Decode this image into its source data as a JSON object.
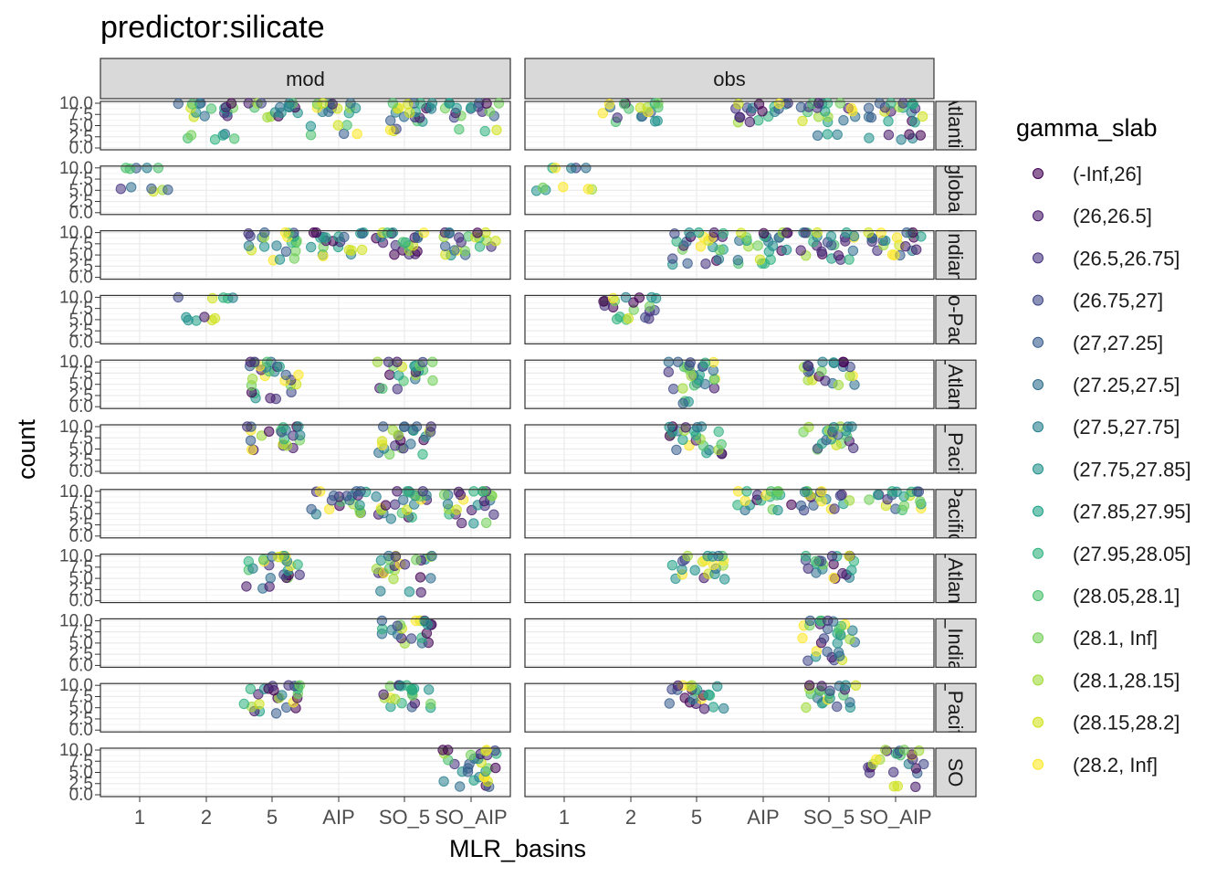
{
  "chart_data": {
    "type": "scatter",
    "title": "predictor:silicate",
    "xlabel": "MLR_basins",
    "ylabel": "count",
    "x_categories": [
      "1",
      "2",
      "5",
      "AIP",
      "SO_5",
      "SO_AIP"
    ],
    "y_ticks": [
      "0.0",
      "2.5",
      "5.0",
      "7.5",
      "10.0"
    ],
    "ylim": [
      0,
      10
    ],
    "grid": true,
    "facet_columns": [
      "mod",
      "obs"
    ],
    "facet_rows": [
      {
        "label": "Atlantic",
        "mod": {
          "5": [
            7,
            8,
            9,
            10
          ],
          "AIP": [
            3,
            5,
            8,
            9,
            10
          ],
          "SO_5": [
            4,
            6,
            7,
            8,
            9,
            10
          ],
          "SO_AIP": [
            4,
            7,
            8,
            9,
            10
          ],
          "2": [
            2,
            3,
            7,
            8,
            9,
            10
          ]
        },
        "obs": {
          "2": [
            6,
            7,
            8,
            9,
            10
          ],
          "AIP": [
            6,
            7,
            8,
            9,
            10
          ],
          "SO_5": [
            3,
            6,
            7,
            8,
            9,
            10
          ],
          "SO_AIP": [
            2,
            3,
            6,
            7,
            8,
            9,
            10
          ]
        }
      },
      {
        "label": "global",
        "mod": {
          "1": [
            5,
            5.5,
            10
          ]
        },
        "obs": {
          "1": [
            5,
            5.5,
            10
          ]
        }
      },
      {
        "label": "Indian",
        "mod": {
          "5": [
            4,
            6,
            7,
            8,
            9,
            10
          ],
          "AIP": [
            5,
            6,
            7,
            8,
            9,
            10
          ],
          "SO_5": [
            5,
            6,
            7,
            8,
            9,
            10
          ],
          "SO_AIP": [
            5,
            6,
            7,
            8,
            9,
            10
          ]
        },
        "obs": {
          "5": [
            3,
            4,
            6,
            7,
            8,
            9,
            10
          ],
          "AIP": [
            3,
            4,
            6,
            7,
            8,
            9,
            10
          ],
          "SO_5": [
            4,
            5,
            6,
            7,
            8,
            9,
            10
          ],
          "SO_AIP": [
            5,
            6,
            7,
            8,
            9,
            10
          ]
        }
      },
      {
        "label": "Indo-Pacific",
        "mod": {
          "2": [
            5,
            5.5,
            10
          ]
        },
        "obs": {
          "2": [
            5,
            5.5,
            7,
            8,
            9,
            10
          ]
        }
      },
      {
        "label": "N_Atlantic",
        "mod": {
          "5": [
            2,
            3,
            5,
            6,
            7,
            8,
            9,
            10
          ],
          "SO_5": [
            4,
            6,
            7,
            8,
            9,
            10
          ]
        },
        "obs": {
          "5": [
            1,
            4,
            5,
            6,
            7,
            8,
            9,
            10
          ],
          "SO_5": [
            5,
            6,
            7,
            8,
            9,
            10
          ]
        }
      },
      {
        "label": "N_Pacific",
        "mod": {
          "5": [
            5,
            6,
            7,
            8,
            9,
            10
          ],
          "SO_5": [
            4,
            5,
            6,
            7,
            8,
            9,
            10
          ]
        },
        "obs": {
          "5": [
            4,
            5,
            6,
            7,
            8,
            9,
            10
          ],
          "SO_5": [
            5,
            6,
            7,
            8,
            9,
            10
          ]
        }
      },
      {
        "label": "Pacific",
        "mod": {
          "AIP": [
            5,
            6,
            7,
            8,
            9,
            10
          ],
          "SO_5": [
            4,
            5,
            6,
            7,
            8,
            9,
            10
          ],
          "SO_AIP": [
            3,
            5,
            6,
            7,
            8,
            9,
            10
          ]
        },
        "obs": {
          "AIP": [
            6,
            7,
            8,
            9,
            10
          ],
          "SO_5": [
            6,
            7,
            8,
            9,
            10
          ],
          "SO_AIP": [
            6,
            7,
            8,
            9,
            10
          ]
        }
      },
      {
        "label": "S_Atlantic",
        "mod": {
          "5": [
            3,
            5,
            6,
            7,
            8,
            9,
            10
          ],
          "SO_5": [
            2,
            5,
            6,
            7,
            8,
            9,
            10
          ]
        },
        "obs": {
          "5": [
            5,
            6,
            7,
            8,
            9,
            10
          ],
          "SO_5": [
            5,
            6,
            7,
            8,
            9,
            10
          ]
        }
      },
      {
        "label": "S_Indian",
        "mod": {
          "SO_5": [
            5,
            6,
            7,
            8,
            9,
            10
          ]
        },
        "obs": {
          "SO_5": [
            1,
            2,
            3,
            5,
            6,
            7,
            8,
            9,
            10
          ]
        }
      },
      {
        "label": "S_Pacific",
        "mod": {
          "5": [
            4,
            5,
            6,
            7,
            8,
            9,
            10
          ],
          "SO_5": [
            5,
            6,
            7,
            8,
            9,
            10
          ]
        },
        "obs": {
          "5": [
            5,
            6,
            7,
            8,
            9,
            10
          ],
          "SO_5": [
            5,
            6,
            7,
            8,
            9,
            10
          ]
        }
      },
      {
        "label": "SO",
        "mod": {
          "SO_AIP": [
            2,
            3,
            4,
            5,
            6,
            7,
            8,
            9,
            10
          ]
        },
        "obs": {
          "SO_AIP": [
            2,
            5,
            6,
            7,
            8,
            9,
            10
          ]
        }
      }
    ],
    "legend": {
      "title": "gamma_slab",
      "position": "right",
      "entries": [
        {
          "label": "(-Inf,26]",
          "color": "#440154"
        },
        {
          "label": "(26,26.5]",
          "color": "#481b6d"
        },
        {
          "label": "(26.5,26.75]",
          "color": "#46327e"
        },
        {
          "label": "(26.75,27]",
          "color": "#3f4788"
        },
        {
          "label": "(27,27.25]",
          "color": "#365c8d"
        },
        {
          "label": "(27.25,27.5]",
          "color": "#2e6e8e"
        },
        {
          "label": "(27.5,27.75]",
          "color": "#277f8e"
        },
        {
          "label": "(27.75,27.85]",
          "color": "#21918c"
        },
        {
          "label": "(27.85,27.95]",
          "color": "#1fa187"
        },
        {
          "label": "(27.95,28.05]",
          "color": "#2db27d"
        },
        {
          "label": "(28.05,28.1]",
          "color": "#4ac16d"
        },
        {
          "label": "(28.1, Inf]",
          "color": "#71cf57"
        },
        {
          "label": "(28.1,28.15]",
          "color": "#a0da39"
        },
        {
          "label": "(28.15,28.2]",
          "color": "#d0e11c"
        },
        {
          "label": "(28.2, Inf]",
          "color": "#fde725"
        }
      ]
    }
  }
}
